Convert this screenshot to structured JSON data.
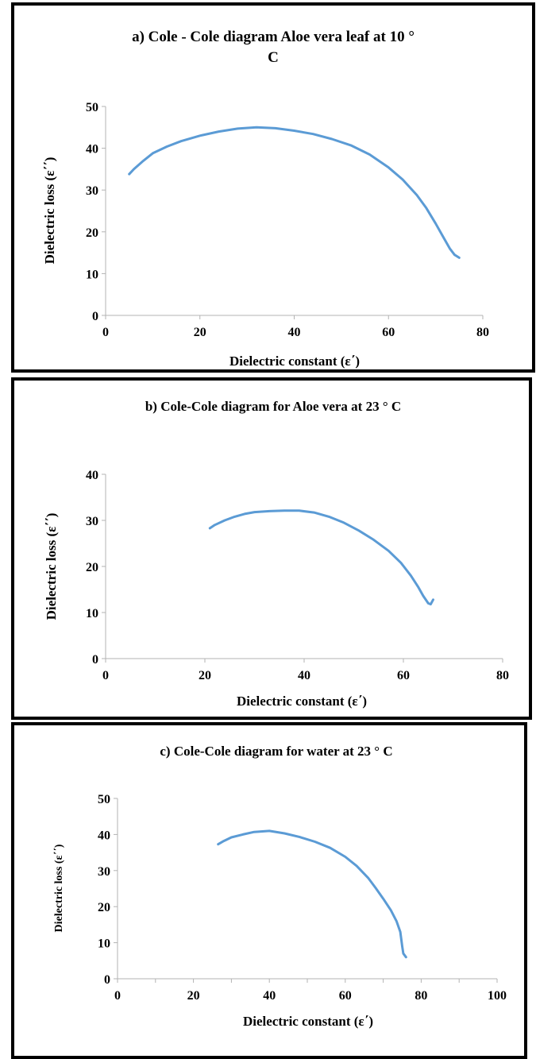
{
  "chart_data": [
    {
      "type": "line",
      "title_line1": "a)   Cole - Cole diagram  Aloe vera leaf at 10 °",
      "title_line2": "C",
      "xlabel": "Dielectric constant (ε΄)",
      "ylabel": "Dielectric loss (ε΄΄)",
      "xlim": [
        0,
        80
      ],
      "ylim": [
        0,
        50
      ],
      "xticks": [
        0,
        20,
        40,
        60,
        80
      ],
      "yticks": [
        0,
        10,
        20,
        30,
        40,
        50
      ],
      "series": [
        {
          "color": "#5b9bd5",
          "x": [
            5,
            6,
            8,
            10,
            13,
            16,
            20,
            24,
            28,
            32,
            36,
            40,
            44,
            48,
            52,
            56,
            60,
            63,
            66,
            68,
            70,
            71.5,
            73,
            74,
            75
          ],
          "y": [
            33.8,
            35,
            37,
            38.8,
            40.4,
            41.7,
            43,
            44,
            44.7,
            45,
            44.8,
            44.2,
            43.4,
            42.2,
            40.7,
            38.5,
            35.4,
            32.5,
            28.8,
            25.7,
            22,
            19,
            16,
            14.5,
            13.8
          ]
        }
      ]
    },
    {
      "type": "line",
      "title_line1": "b)  Cole-Cole diagram for Aloe vera at 23 ° C",
      "title_line2": "",
      "xlabel": "Dielectric constant (ε΄)",
      "ylabel": "Dielectric loss (ε΄΄)",
      "xlim": [
        0,
        80
      ],
      "ylim": [
        0,
        40
      ],
      "xticks": [
        0,
        20,
        40,
        60,
        80
      ],
      "yticks": [
        0,
        10,
        20,
        30,
        40
      ],
      "series": [
        {
          "color": "#5b9bd5",
          "x": [
            21,
            22,
            24,
            26,
            28,
            30,
            33,
            36,
            39,
            42,
            45,
            48,
            51,
            54,
            57,
            59.5,
            61.5,
            63,
            64,
            65,
            65.5,
            66
          ],
          "y": [
            28.3,
            29,
            30,
            30.8,
            31.4,
            31.8,
            32,
            32.1,
            32.1,
            31.7,
            30.8,
            29.5,
            27.8,
            25.8,
            23.4,
            20.8,
            18,
            15.5,
            13.6,
            12,
            11.8,
            12.8
          ]
        }
      ]
    },
    {
      "type": "line",
      "title_line1": "c)  Cole-Cole diagram for water at 23 °  C",
      "title_line2": "",
      "xlabel": "Dielectric constant (ε΄)",
      "ylabel": "Dielectric loss (ε΄΄)",
      "xlim": [
        0,
        100
      ],
      "ylim": [
        0,
        50
      ],
      "xticks": [
        0,
        20,
        40,
        60,
        80,
        100
      ],
      "yticks": [
        0,
        10,
        20,
        30,
        40,
        50
      ],
      "series": [
        {
          "color": "#5b9bd5",
          "x": [
            26.5,
            28,
            30,
            33,
            36,
            40,
            44,
            48,
            52,
            56,
            60,
            63,
            66,
            68,
            70,
            72,
            73.5,
            74.5,
            75,
            75.3,
            76
          ],
          "y": [
            37.3,
            38.2,
            39.2,
            40,
            40.7,
            41,
            40.3,
            39.3,
            38,
            36.3,
            33.8,
            31.3,
            28,
            25.2,
            22.2,
            19,
            16,
            13,
            9,
            7,
            6
          ]
        }
      ]
    }
  ]
}
